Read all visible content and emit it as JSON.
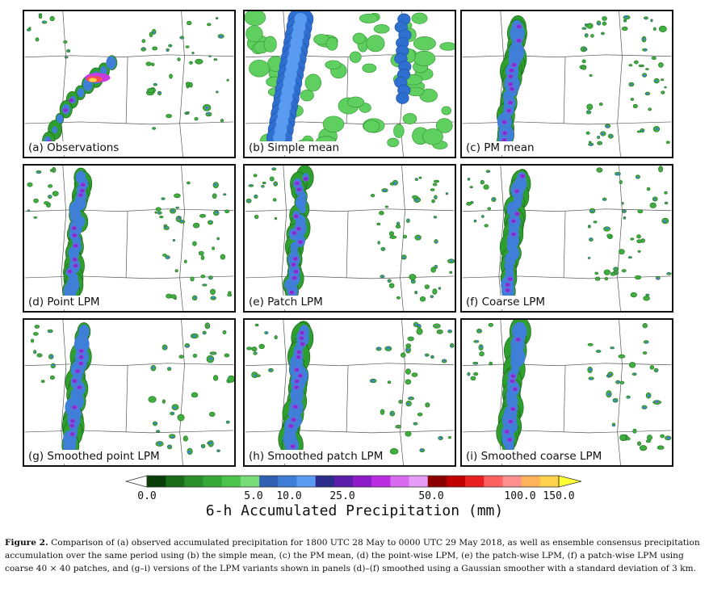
{
  "panels": [
    {
      "label": "(a) Observations",
      "kind": "obs"
    },
    {
      "label": "(b) Simple mean",
      "kind": "mean"
    },
    {
      "label": "(c) PM mean",
      "kind": "pm"
    },
    {
      "label": "(d) Point LPM",
      "kind": "lpm"
    },
    {
      "label": "(e) Patch LPM",
      "kind": "lpm"
    },
    {
      "label": "(f) Coarse LPM",
      "kind": "lpm"
    },
    {
      "label": "(g) Smoothed point LPM",
      "kind": "smooth"
    },
    {
      "label": "(h) Smoothed patch LPM",
      "kind": "smooth"
    },
    {
      "label": "(i) Smoothed coarse LPM",
      "kind": "smooth"
    }
  ],
  "colorbar": {
    "title": "6-h Accumulated Precipitation (mm)",
    "ticks": [
      "0.0",
      "5.0",
      "10.0",
      "25.0",
      "50.0",
      "100.0",
      "150.0"
    ],
    "colors": [
      "#0b3d0b",
      "#1a6b1a",
      "#2a8f2a",
      "#37a837",
      "#4cc44c",
      "#78dc78",
      "#2f5fae",
      "#3d7dd6",
      "#5a9bf2",
      "#2c2c8a",
      "#5b1ea8",
      "#8e1cc8",
      "#b82ee0",
      "#d86bf0",
      "#e59cf7",
      "#8a0000",
      "#c00000",
      "#e82020",
      "#ff6060",
      "#ff9090",
      "#ffb35c",
      "#ffd24d"
    ],
    "end_color": "#ffff33"
  },
  "caption": {
    "prefix": "Figure 2.",
    "text": " Comparison of (a) observed accumulated precipitation for 1800 UTC 28 May to 0000 UTC 29 May 2018, as well as ensemble consensus precipitation accumulation over the same period using (b) the simple mean, (c) the PM mean, (d) the point-wise LPM, (e) the patch-wise LPM, (f) a patch-wise LPM using coarse 40 × 40 patches, and (g–i) versions of the LPM variants shown in panels (d)–(f) smoothed using a Gaussian smoother with a standard deviation of 3 km."
  }
}
